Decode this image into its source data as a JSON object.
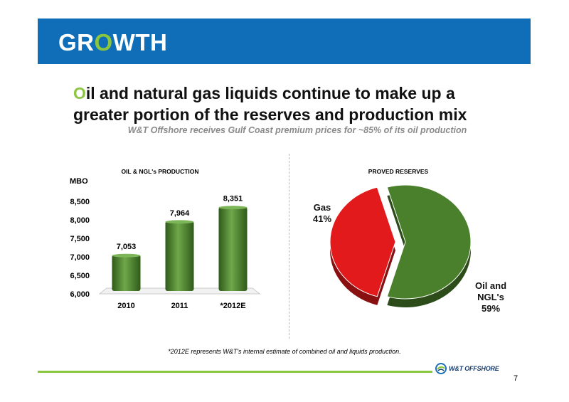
{
  "banner": {
    "title_pre": "GR",
    "title_accent": "O",
    "title_post": "WTH",
    "background_color": "#0f6eb7",
    "accent_color": "#8cc63f"
  },
  "headline": {
    "first_letter": "O",
    "rest": "il and natural gas liquids continue to make up a greater portion of the reserves and production mix"
  },
  "subhead": "W&T Offshore receives Gulf Coast premium prices for ~85% of its oil production",
  "footnote": "*2012E represents W&T's internal estimate of combined oil and liquids production.",
  "logo": {
    "text": "W&T OFFSHORE",
    "icon": "swirl-logo-icon"
  },
  "page_number": "7",
  "chart_data": [
    {
      "type": "bar",
      "title": "OIL & NGL's PRODUCTION",
      "ylabel": "MBO",
      "categories": [
        "2010",
        "2011",
        "*2012E"
      ],
      "values": [
        7053,
        7964,
        8351
      ],
      "value_labels": [
        "7,053",
        "7,964",
        "8,351"
      ],
      "ylim": [
        6000,
        8500
      ],
      "yticks": [
        "6,000",
        "6,500",
        "7,000",
        "7,500",
        "8,000",
        "8,500"
      ],
      "grid": false,
      "bar_color": "#4a7f2c"
    },
    {
      "type": "pie",
      "title": "PROVED RESERVES",
      "slices": [
        {
          "label": "Gas",
          "percent_label": "41%",
          "value": 41,
          "color": "#e31a1c",
          "exploded": true
        },
        {
          "label": "Oil and NGL's",
          "percent_label": "59%",
          "value": 59,
          "color": "#4a7f2c",
          "exploded": false
        }
      ]
    }
  ]
}
